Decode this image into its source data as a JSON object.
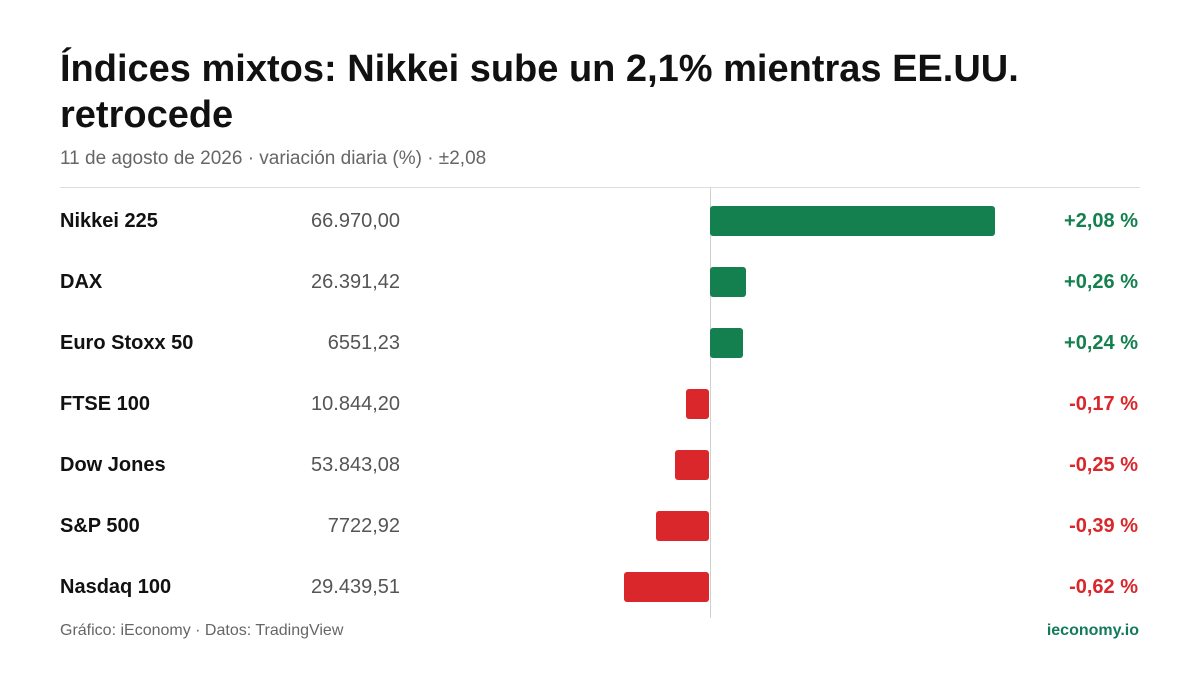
{
  "header": {
    "title": "Índices mixtos: Nikkei sube un 2,1%  mientras EE.UU. retrocede",
    "subtitle": "11 de agosto de 2026 · variación diaria (%) · ±2,08"
  },
  "footer": {
    "source": "Gráfico: iEconomy · Datos: TradingView",
    "brand": "ieconomy.io"
  },
  "colors": {
    "positive": "#14804f",
    "negative": "#d9272b",
    "brand": "#147a5c"
  },
  "chart_data": {
    "type": "bar",
    "orientation": "horizontal",
    "unit": "%",
    "xlim": [
      -0.62,
      2.08
    ],
    "categories": [
      "Nikkei 225",
      "DAX",
      "Euro Stoxx 50",
      "FTSE 100",
      "Dow Jones",
      "S&P 500",
      "Nasdaq 100"
    ],
    "values": [
      2.08,
      0.26,
      0.24,
      -0.17,
      -0.25,
      -0.39,
      -0.62
    ],
    "rows": [
      {
        "name": "Nikkei 225",
        "price": "66.970,00",
        "change": 2.08,
        "label": "+2,08 %"
      },
      {
        "name": "DAX",
        "price": "26.391,42",
        "change": 0.26,
        "label": "+0,26 %"
      },
      {
        "name": "Euro Stoxx 50",
        "price": "6551,23",
        "change": 0.24,
        "label": "+0,24 %"
      },
      {
        "name": "FTSE 100",
        "price": "10.844,20",
        "change": -0.17,
        "label": "-0,17 %"
      },
      {
        "name": "Dow Jones",
        "price": "53.843,08",
        "change": -0.25,
        "label": "-0,25 %"
      },
      {
        "name": "S&P 500",
        "price": "7722,92",
        "change": -0.39,
        "label": "-0,39 %"
      },
      {
        "name": "Nasdaq 100",
        "price": "29.439,51",
        "change": -0.62,
        "label": "-0,62 %"
      }
    ]
  }
}
